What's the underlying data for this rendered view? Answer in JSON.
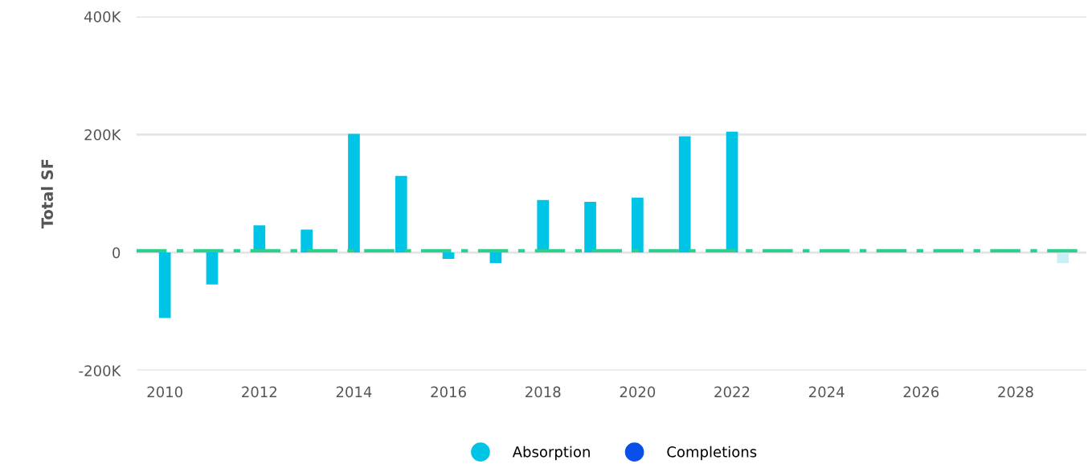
{
  "chart_data": {
    "type": "bar",
    "ylabel": "Total SF",
    "x": [
      2010,
      2011,
      2012,
      2013,
      2014,
      2015,
      2016,
      2017,
      2018,
      2019,
      2020,
      2021,
      2022,
      2023,
      2024,
      2025,
      2026,
      2027,
      2028,
      2029
    ],
    "series": [
      {
        "name": "Absorption",
        "color": "#00c4e6",
        "colors": [
          "#00c4e6",
          "#00c4e6",
          "#00c4e6",
          "#00c4e6",
          "#00c4e6",
          "#00c4e6",
          "#00c4e6",
          "#00c4e6",
          "#00c4e6",
          "#00c4e6",
          "#00c4e6",
          "#00c4e6",
          "#00c4e6",
          "#00c4e6",
          "#00c4e6",
          "#00c4e6",
          "#00c4e6",
          "#00c4e6",
          "#00c4e6",
          "#c9eef6"
        ],
        "values": [
          -111000,
          -54000,
          46000,
          39000,
          201000,
          130000,
          -11000,
          -18000,
          89000,
          86000,
          93000,
          197000,
          205000,
          null,
          null,
          null,
          null,
          null,
          null,
          -18000
        ]
      },
      {
        "name": "Completions",
        "color": "#0a50e8",
        "values": [
          null,
          null,
          null,
          null,
          null,
          null,
          null,
          null,
          null,
          null,
          null,
          null,
          null,
          null,
          null,
          null,
          null,
          null,
          null,
          null
        ]
      }
    ],
    "ref_lines": [
      {
        "axis": "y",
        "value": 3000,
        "color": "#2ecf8f",
        "line_style": "dashed"
      }
    ],
    "xlim": [
      2009.4,
      2029.5
    ],
    "xticks": [
      2010,
      2012,
      2014,
      2016,
      2018,
      2020,
      2022,
      2024,
      2026,
      2028
    ],
    "ylim": [
      -200000,
      400000
    ],
    "yticks": [
      {
        "value": -200000,
        "label": "-200K"
      },
      0,
      {
        "value": 200000,
        "label": "200K"
      },
      {
        "value": 400000,
        "label": "400K"
      }
    ],
    "grid": "y",
    "legend": "bottom",
    "marker": "circle"
  }
}
